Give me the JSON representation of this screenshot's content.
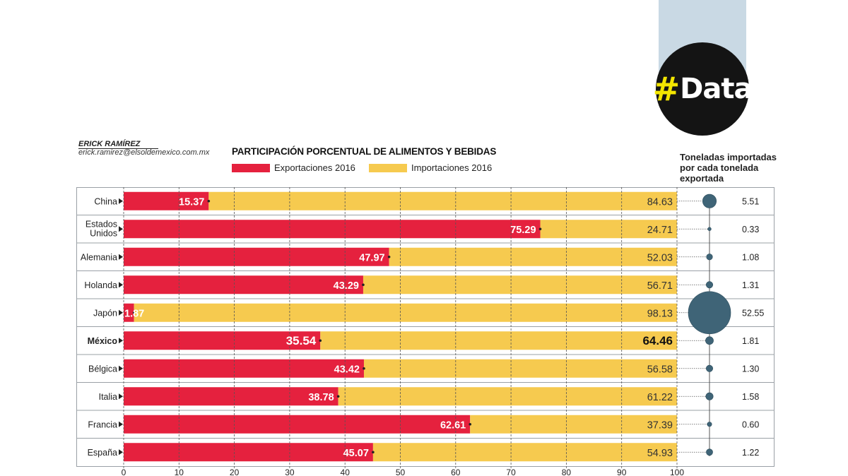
{
  "badge": {
    "hash": "#",
    "word": "Data"
  },
  "author": {
    "name": "ERICK RAMÍREZ",
    "email": "erick.ramirez@elsoldemexico.com.mx"
  },
  "colors": {
    "exports": "#e5213e",
    "imports": "#f6ca4f",
    "bubble": "#3f6477",
    "frame": "#9aa0a6"
  },
  "side_header": "Toneladas importadas por cada tonelada exportada",
  "chart_data": {
    "type": "bar",
    "stacked": true,
    "orientation": "horizontal",
    "title": "PARTICIPACIÓN PORCENTUAL DE ALIMENTOS Y BEBIDAS",
    "categories": [
      "China",
      "Estados Unidos",
      "Alemania",
      "Holanda",
      "Japón",
      "México",
      "Bélgica",
      "Italia",
      "Francia",
      "España"
    ],
    "category_lines": [
      [
        "China"
      ],
      [
        "Estados",
        "Unidos"
      ],
      [
        "Alemania"
      ],
      [
        "Holanda"
      ],
      [
        "Japón"
      ],
      [
        "México"
      ],
      [
        "Bélgica"
      ],
      [
        "Italia"
      ],
      [
        "Francia"
      ],
      [
        "España"
      ]
    ],
    "highlight": "México",
    "series": [
      {
        "name": "Exportaciones 2016",
        "values": [
          "15.37",
          "75.29",
          "47.97",
          "43.29",
          "1.87",
          "35.54",
          "43.42",
          "38.78",
          "62.61",
          "45.07"
        ]
      },
      {
        "name": "Importaciones 2016",
        "values": [
          "84.63",
          "24.71",
          "52.03",
          "56.71",
          "98.13",
          "64.46",
          "56.58",
          "61.22",
          "37.39",
          "54.93"
        ]
      }
    ],
    "ratio": {
      "values": [
        "5.51",
        "0.33",
        "1.08",
        "1.31",
        "52.55",
        "1.81",
        "1.30",
        "1.58",
        "0.60",
        "1.22"
      ]
    },
    "xticks": [
      "0",
      "10",
      "20",
      "30",
      "40",
      "50",
      "60",
      "70",
      "80",
      "90",
      "100"
    ],
    "xlim": [
      0,
      100
    ],
    "legend_position": "top"
  }
}
